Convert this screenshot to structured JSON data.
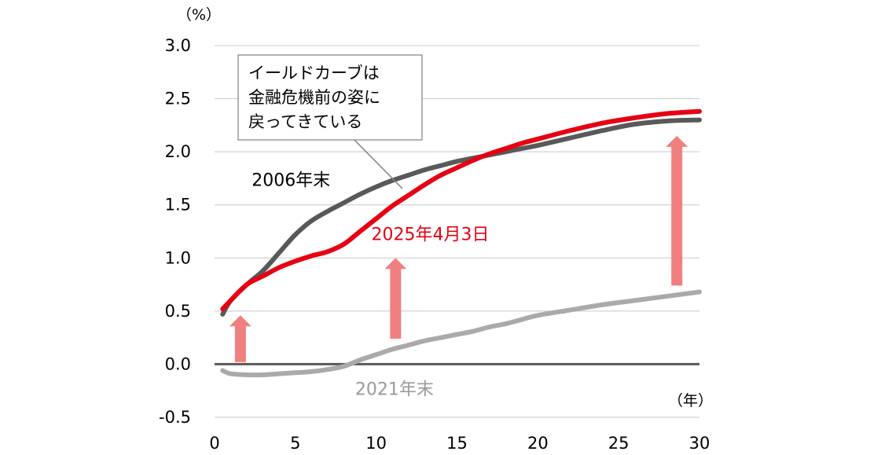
{
  "chart_data": {
    "type": "line",
    "y_unit": "（%）",
    "x_unit": "（年）",
    "xlim": [
      0,
      30
    ],
    "ylim": [
      -0.5,
      3.0
    ],
    "x_ticks": [
      "0",
      "5",
      "10",
      "15",
      "20",
      "25",
      "30"
    ],
    "y_ticks": [
      "-0.5",
      "0.0",
      "0.5",
      "1.0",
      "1.5",
      "2.0",
      "2.5",
      "3.0"
    ],
    "grid": true,
    "series": [
      {
        "name": "2006年末",
        "color": "#595959",
        "x": [
          0.5,
          1,
          2,
          3,
          4,
          5,
          6,
          7,
          8,
          9,
          10,
          11,
          12,
          13,
          14,
          15,
          16,
          17,
          18,
          19,
          20,
          22,
          24,
          26,
          28,
          30
        ],
        "y": [
          0.47,
          0.6,
          0.75,
          0.88,
          1.05,
          1.22,
          1.35,
          1.44,
          1.52,
          1.6,
          1.67,
          1.73,
          1.78,
          1.83,
          1.87,
          1.91,
          1.94,
          1.97,
          2.0,
          2.03,
          2.06,
          2.13,
          2.2,
          2.26,
          2.29,
          2.3
        ]
      },
      {
        "name": "2025年4月3日",
        "color": "#e60012",
        "x": [
          0.5,
          1,
          2,
          3,
          4,
          5,
          6,
          7,
          8,
          9,
          10,
          11,
          12,
          13,
          14,
          15,
          16,
          17,
          18,
          19,
          20,
          22,
          24,
          26,
          28,
          30
        ],
        "y": [
          0.52,
          0.6,
          0.75,
          0.83,
          0.91,
          0.97,
          1.02,
          1.06,
          1.13,
          1.25,
          1.37,
          1.49,
          1.59,
          1.69,
          1.78,
          1.85,
          1.92,
          1.98,
          2.03,
          2.08,
          2.12,
          2.2,
          2.27,
          2.32,
          2.36,
          2.38
        ]
      },
      {
        "name": "2021年末",
        "color": "#aaaaaa",
        "x": [
          0.5,
          1,
          2,
          3,
          4,
          5,
          6,
          7,
          8,
          9,
          10,
          11,
          12,
          13,
          14,
          15,
          16,
          17,
          18,
          19,
          20,
          22,
          24,
          26,
          28,
          30
        ],
        "y": [
          -0.06,
          -0.09,
          -0.1,
          -0.1,
          -0.09,
          -0.08,
          -0.07,
          -0.05,
          -0.02,
          0.04,
          0.09,
          0.14,
          0.18,
          0.22,
          0.25,
          0.28,
          0.31,
          0.35,
          0.38,
          0.42,
          0.46,
          0.51,
          0.56,
          0.6,
          0.64,
          0.68
        ]
      }
    ],
    "series_labels": [
      {
        "text": "2006年末",
        "color": "#000000",
        "x": 2.3,
        "y": 1.68
      },
      {
        "text": "2025年4月3日",
        "color": "#e60012",
        "x": 9.7,
        "y": 1.17
      },
      {
        "text": "2021年末",
        "color": "#9a9a9a",
        "x": 8.7,
        "y": -0.29
      }
    ],
    "arrows": [
      {
        "x": 1.6,
        "from": 0.02,
        "to": 0.46
      },
      {
        "x": 11.2,
        "from": 0.24,
        "to": 1.0
      },
      {
        "x": 28.6,
        "from": 0.74,
        "to": 2.15
      }
    ],
    "annotation": {
      "lines": [
        "イールドカーブは",
        "金融危機前の姿に",
        "戻ってきている"
      ]
    }
  }
}
